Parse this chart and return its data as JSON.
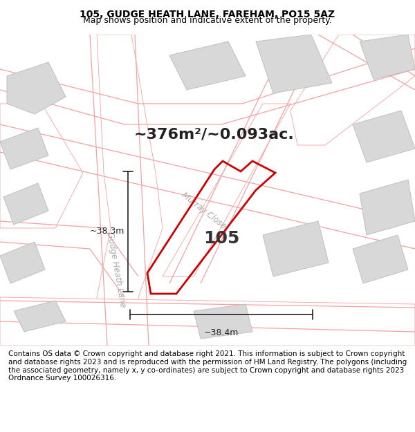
{
  "title": "105, GUDGE HEATH LANE, FAREHAM, PO15 5AZ",
  "subtitle": "Map shows position and indicative extent of the property.",
  "area_label": "~376m²/~0.093ac.",
  "plot_number": "105",
  "dim_vertical": "~38.3m",
  "dim_horizontal": "~38.4m",
  "footer": "Contains OS data © Crown copyright and database right 2021. This information is subject to Crown copyright and database rights 2023 and is reproduced with the permission of HM Land Registry. The polygons (including the associated geometry, namely x, y co-ordinates) are subject to Crown copyright and database rights 2023 Ordnance Survey 100026316.",
  "bg_color": "#ffffff",
  "map_bg": "#f0f0f0",
  "road_fill": "#ffffff",
  "road_line": "#f5a0a0",
  "building_fc": "#d8d8d8",
  "building_ec": "#c0c0c0",
  "plot_ec": "#cc0000",
  "street_label1": "Murray Close",
  "street_label2": "Gudge Heath Lane",
  "title_fontsize": 10,
  "subtitle_fontsize": 9,
  "area_fontsize": 16,
  "plot_fontsize": 18,
  "dim_fontsize": 9,
  "street_fontsize": 8.5,
  "footer_fontsize": 7.5
}
